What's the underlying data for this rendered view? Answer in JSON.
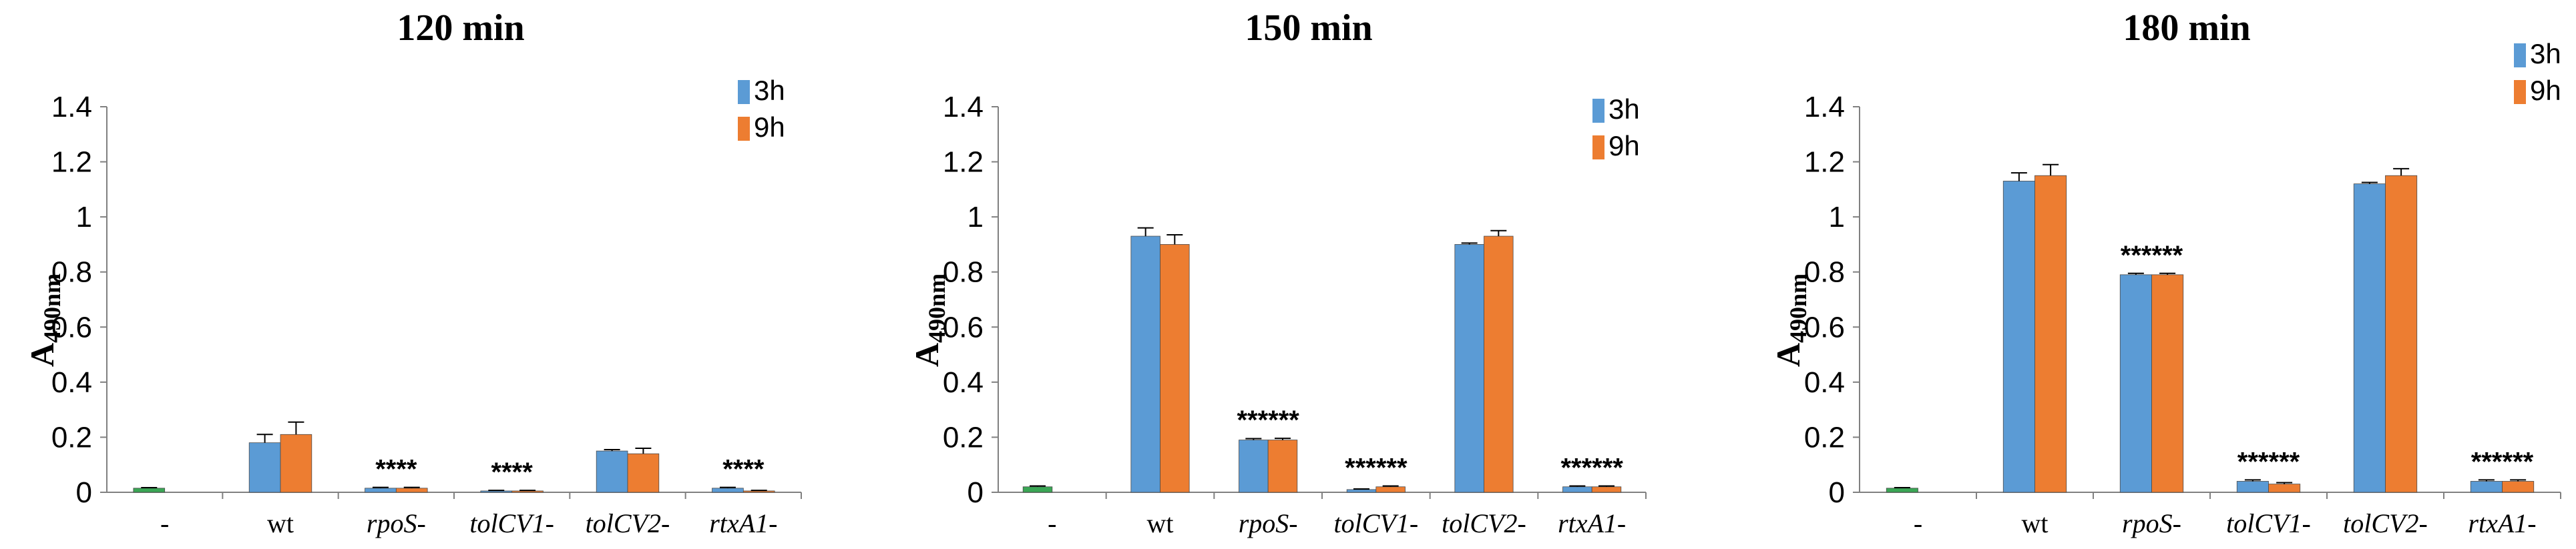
{
  "colors": {
    "series_3h": "#5b9bd5",
    "series_9h": "#ed7d31",
    "control": "#3aa655",
    "axis": "#808080",
    "error_bar": "#000000"
  },
  "chart_data": [
    {
      "type": "bar",
      "title": "120 min",
      "ylabel_main": "A",
      "ylabel_sub": "490nm",
      "ylim": [
        0,
        1.4
      ],
      "yticks": [
        "0",
        "0.2",
        "0.4",
        "0.6",
        "0.8",
        "1",
        "1.2",
        "1.4"
      ],
      "categories": [
        "-",
        "wt",
        "rpoS-",
        "tolCV1-",
        "tolCV2-",
        "rtxA1-"
      ],
      "series": [
        {
          "name": "3h",
          "values": [
            0.015,
            0.18,
            0.015,
            0.005,
            0.15,
            0.015
          ],
          "errors": [
            0.002,
            0.03,
            0.003,
            0.002,
            0.005,
            0.003
          ]
        },
        {
          "name": "9h",
          "values": [
            null,
            0.21,
            0.015,
            0.005,
            0.14,
            0.005
          ],
          "errors": [
            null,
            0.045,
            0.003,
            0.002,
            0.02,
            0.002
          ]
        }
      ],
      "significance": [
        "",
        "",
        "****",
        "****",
        "",
        "****"
      ],
      "legend_position": "top-right",
      "grid": false
    },
    {
      "type": "bar",
      "title": "150 min",
      "ylabel_main": "A",
      "ylabel_sub": "490nm",
      "ylim": [
        0,
        1.4
      ],
      "yticks": [
        "0",
        "0.2",
        "0.4",
        "0.6",
        "0.8",
        "1",
        "1.2",
        "1.4"
      ],
      "categories": [
        "-",
        "wt",
        "rpoS-",
        "tolCV1-",
        "tolCV2-",
        "rtxA1-"
      ],
      "series": [
        {
          "name": "3h",
          "values": [
            0.02,
            0.93,
            0.19,
            0.01,
            0.9,
            0.02
          ],
          "errors": [
            0.003,
            0.03,
            0.005,
            0.002,
            0.005,
            0.003
          ]
        },
        {
          "name": "9h",
          "values": [
            null,
            0.9,
            0.19,
            0.02,
            0.93,
            0.02
          ],
          "errors": [
            null,
            0.035,
            0.006,
            0.003,
            0.02,
            0.003
          ]
        }
      ],
      "significance": [
        "",
        "",
        "******",
        "******",
        "",
        "******"
      ],
      "legend_position": "top-right",
      "grid": false
    },
    {
      "type": "bar",
      "title": "180 min",
      "ylabel_main": "A",
      "ylabel_sub": "490nm",
      "ylim": [
        0,
        1.4
      ],
      "yticks": [
        "0",
        "0.2",
        "0.4",
        "0.6",
        "0.8",
        "1",
        "1.2",
        "1.4"
      ],
      "categories": [
        "-",
        "wt",
        "rpoS-",
        "tolCV1-",
        "tolCV2-",
        "rtxA1-"
      ],
      "series": [
        {
          "name": "3h",
          "values": [
            0.015,
            1.13,
            0.79,
            0.04,
            1.12,
            0.04
          ],
          "errors": [
            0.002,
            0.03,
            0.005,
            0.005,
            0.005,
            0.005
          ]
        },
        {
          "name": "9h",
          "values": [
            null,
            1.15,
            0.79,
            0.03,
            1.15,
            0.04
          ],
          "errors": [
            null,
            0.04,
            0.005,
            0.005,
            0.025,
            0.005
          ]
        }
      ],
      "significance": [
        "",
        "",
        "******",
        "******",
        "",
        "******"
      ],
      "legend_position": "top-right",
      "grid": false
    }
  ]
}
